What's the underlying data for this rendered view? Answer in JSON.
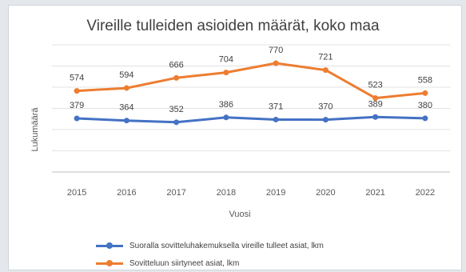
{
  "chart_data": {
    "type": "line",
    "title": "Vireille tulleiden asioiden määrät, koko maa",
    "xlabel": "Vuosi",
    "ylabel": "Lukumäärä",
    "categories": [
      "2015",
      "2016",
      "2017",
      "2018",
      "2019",
      "2020",
      "2021",
      "2022"
    ],
    "ylim": [
      0,
      900
    ],
    "grid": true,
    "legend_position": "bottom",
    "series": [
      {
        "name": "Suoralla sovitteluhakemuksella vireille tulleet asiat, lkm",
        "color": "#4472c4",
        "values": [
          379,
          364,
          352,
          386,
          371,
          370,
          389,
          380
        ],
        "labels": [
          "379",
          "364",
          "352",
          "386",
          "371",
          "370",
          "389",
          "380"
        ]
      },
      {
        "name": "Sovitteluun siirtyneet asiat, lkm",
        "color": "#ed7d31",
        "values": [
          574,
          594,
          666,
          704,
          770,
          721,
          523,
          558
        ],
        "labels": [
          "574",
          "594",
          "666",
          "704",
          "770",
          "721",
          "523",
          "558"
        ]
      }
    ]
  }
}
